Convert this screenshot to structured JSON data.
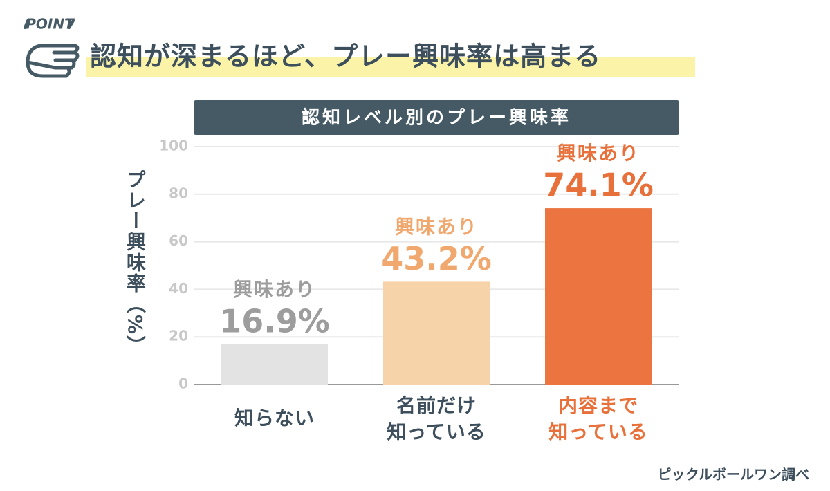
{
  "badge": "POINT",
  "headline": "認知が深まるほど、プレー興味率は高まる",
  "source": "ピックルボールワン調べ",
  "chart_data": {
    "type": "bar",
    "title": "認知レベル別のプレー興味率",
    "y_label": "プレー興味率（%）",
    "categories": [
      "知らない",
      "名前だけ\n知っている",
      "内容まで\n知っている"
    ],
    "values": [
      16.9,
      43.2,
      74.1
    ],
    "value_labels": [
      "16.9%",
      "43.2%",
      "74.1%"
    ],
    "annotations": [
      "興味あり",
      "興味あり",
      "興味あり"
    ],
    "colors": [
      "#e3e3e3",
      "#f6d3a8",
      "#ec7440"
    ],
    "label_colors": [
      "#9d9d9d",
      "#f0a86e",
      "#e8703a"
    ],
    "category_colors": [
      "#3d4f5c",
      "#3d4f5c",
      "#e8703a"
    ],
    "ylim": [
      0,
      100
    ],
    "yticks": [
      0,
      20,
      40,
      60,
      80,
      100
    ],
    "grid": true
  }
}
